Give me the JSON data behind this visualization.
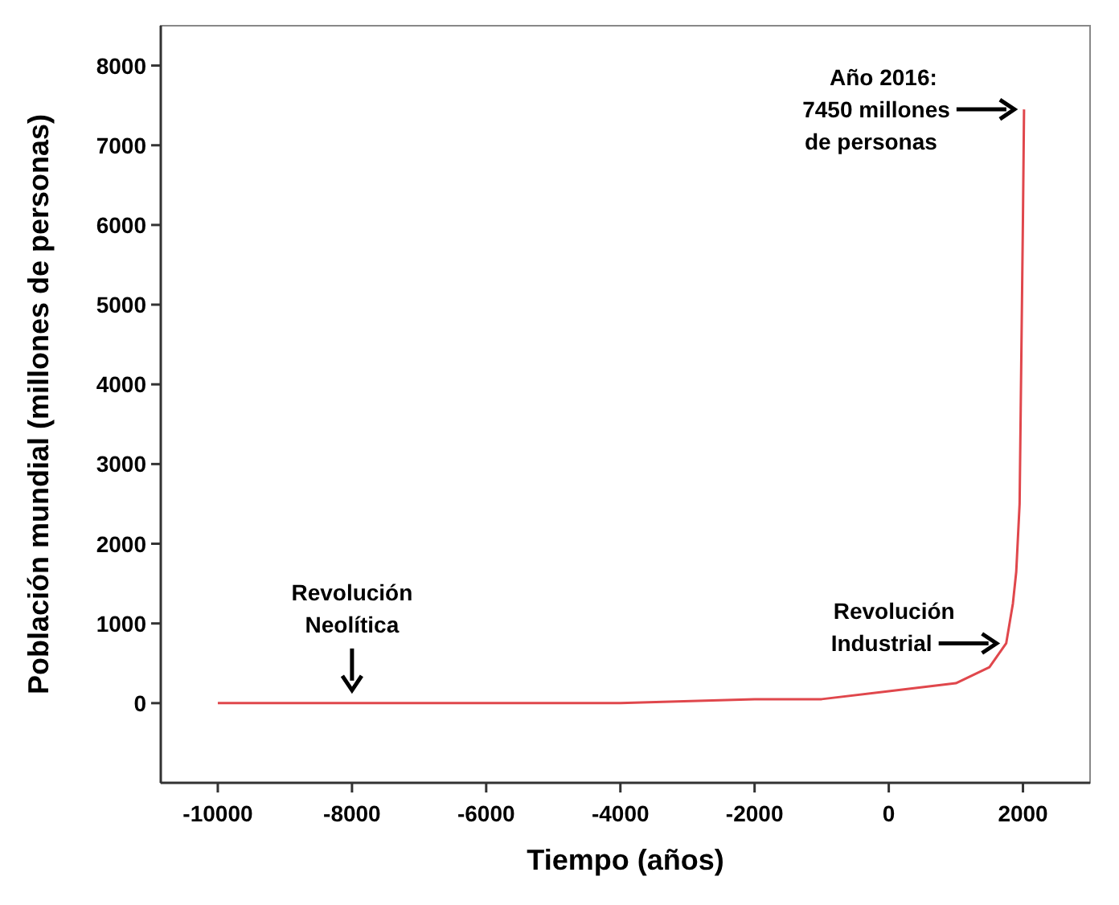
{
  "chart_data": {
    "type": "line",
    "xlabel": "Tiempo (años)",
    "ylabel": "Población mundial (millones de personas)",
    "x": [
      -10000,
      -8000,
      -6000,
      -4000,
      -2000,
      -1000,
      0,
      1000,
      1500,
      1750,
      1800,
      1850,
      1900,
      1950,
      2000,
      2016
    ],
    "series": [
      {
        "color": "#e0474c",
        "values": [
          0,
          0,
          0,
          0,
          50,
          50,
          150,
          250,
          450,
          750,
          1000,
          1250,
          1650,
          2500,
          6100,
          7450
        ]
      }
    ],
    "xlim": [
      -10850,
      3000
    ],
    "ylim": [
      -1000,
      8500
    ],
    "xticks": [
      -10000,
      -8000,
      -6000,
      -4000,
      -2000,
      0,
      2000
    ],
    "yticks": [
      0,
      1000,
      2000,
      3000,
      4000,
      5000,
      6000,
      7000,
      8000
    ],
    "grid": false,
    "marker": "none",
    "line_style": "solid",
    "annotations": [
      {
        "text": "Revolución\nNeolítica",
        "x": -8000,
        "y": 0
      },
      {
        "text": "Revolución\nIndustrial",
        "x": 1750,
        "y": 750
      },
      "Año 2016:\n7450 millones\nde personas"
    ]
  }
}
